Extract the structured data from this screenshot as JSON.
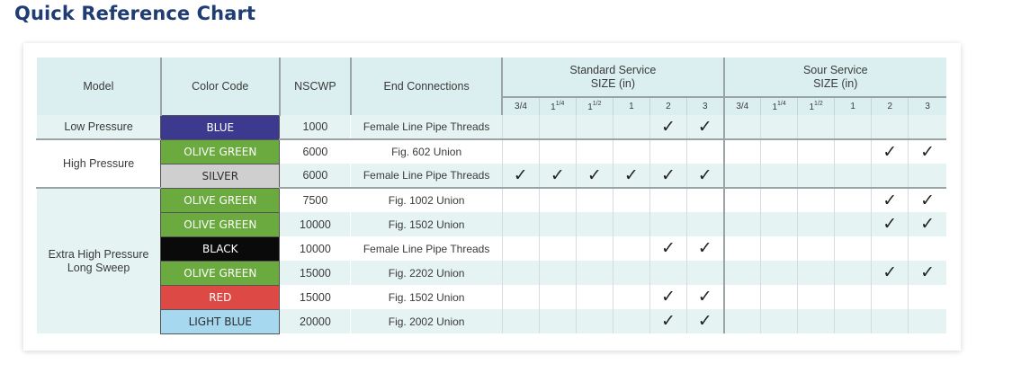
{
  "title": "Quick Reference Chart",
  "headers": {
    "model": "Model",
    "color_code": "Color Code",
    "nscwp": "NSCWP",
    "end_connections": "End Connections",
    "standard_service": "Standard Service",
    "sour_service": "Sour Service",
    "size_label": "SIZE (in)"
  },
  "sizes": [
    {
      "base": "3/4",
      "sup": ""
    },
    {
      "base": "1",
      "sup": "1/4"
    },
    {
      "base": "1",
      "sup": "1/2"
    },
    {
      "base": "1",
      "sup": ""
    },
    {
      "base": "2",
      "sup": ""
    },
    {
      "base": "3",
      "sup": ""
    }
  ],
  "check_mark": "✓",
  "groups": [
    {
      "model": "Low Pressure",
      "row_start": 0,
      "row_span": 1
    },
    {
      "model": "High Pressure",
      "row_start": 1,
      "row_span": 2
    },
    {
      "model": "Extra High Pressure Long Sweep",
      "row_start": 3,
      "row_span": 6
    }
  ],
  "rows": [
    {
      "color": "BLUE",
      "bg": "#3b3a8f",
      "fg": "#ffffff",
      "nscwp": "1000",
      "end": "Female Line Pipe Threads",
      "standard": [
        false,
        false,
        false,
        false,
        true,
        true
      ],
      "sour": [
        false,
        false,
        false,
        false,
        false,
        false
      ]
    },
    {
      "color": "OLIVE GREEN",
      "bg": "#6aaa3e",
      "fg": "#ffffff",
      "nscwp": "6000",
      "end": "Fig. 602 Union",
      "standard": [
        false,
        false,
        false,
        false,
        false,
        false
      ],
      "sour": [
        false,
        false,
        false,
        false,
        true,
        true
      ]
    },
    {
      "color": "SILVER",
      "bg": "#cfcfcf",
      "fg": "#2e2e2e",
      "nscwp": "6000",
      "end": "Female Line Pipe Threads",
      "standard": [
        true,
        true,
        true,
        true,
        true,
        true
      ],
      "sour": [
        false,
        false,
        false,
        false,
        false,
        false
      ]
    },
    {
      "color": "OLIVE GREEN",
      "bg": "#6aaa3e",
      "fg": "#ffffff",
      "nscwp": "7500",
      "end": "Fig. 1002 Union",
      "standard": [
        false,
        false,
        false,
        false,
        false,
        false
      ],
      "sour": [
        false,
        false,
        false,
        false,
        true,
        true
      ]
    },
    {
      "color": "OLIVE GREEN",
      "bg": "#6aaa3e",
      "fg": "#ffffff",
      "nscwp": "10000",
      "end": "Fig. 1502 Union",
      "standard": [
        false,
        false,
        false,
        false,
        false,
        false
      ],
      "sour": [
        false,
        false,
        false,
        false,
        true,
        true
      ]
    },
    {
      "color": "BLACK",
      "bg": "#0a0a0a",
      "fg": "#ffffff",
      "nscwp": "10000",
      "end": "Female Line Pipe Threads",
      "standard": [
        false,
        false,
        false,
        false,
        true,
        true
      ],
      "sour": [
        false,
        false,
        false,
        false,
        false,
        false
      ]
    },
    {
      "color": "OLIVE GREEN",
      "bg": "#6aaa3e",
      "fg": "#ffffff",
      "nscwp": "15000",
      "end": "Fig. 2202 Union",
      "standard": [
        false,
        false,
        false,
        false,
        false,
        false
      ],
      "sour": [
        false,
        false,
        false,
        false,
        true,
        true
      ]
    },
    {
      "color": "RED",
      "bg": "#dd4a45",
      "fg": "#ffffff",
      "nscwp": "15000",
      "end": "Fig. 1502 Union",
      "standard": [
        false,
        false,
        false,
        false,
        true,
        true
      ],
      "sour": [
        false,
        false,
        false,
        false,
        false,
        false
      ]
    },
    {
      "color": "LIGHT BLUE",
      "bg": "#a6d8f0",
      "fg": "#2e2e2e",
      "nscwp": "20000",
      "end": "Fig. 2002 Union",
      "standard": [
        false,
        false,
        false,
        false,
        true,
        true
      ],
      "sour": [
        false,
        false,
        false,
        false,
        false,
        false
      ]
    }
  ]
}
